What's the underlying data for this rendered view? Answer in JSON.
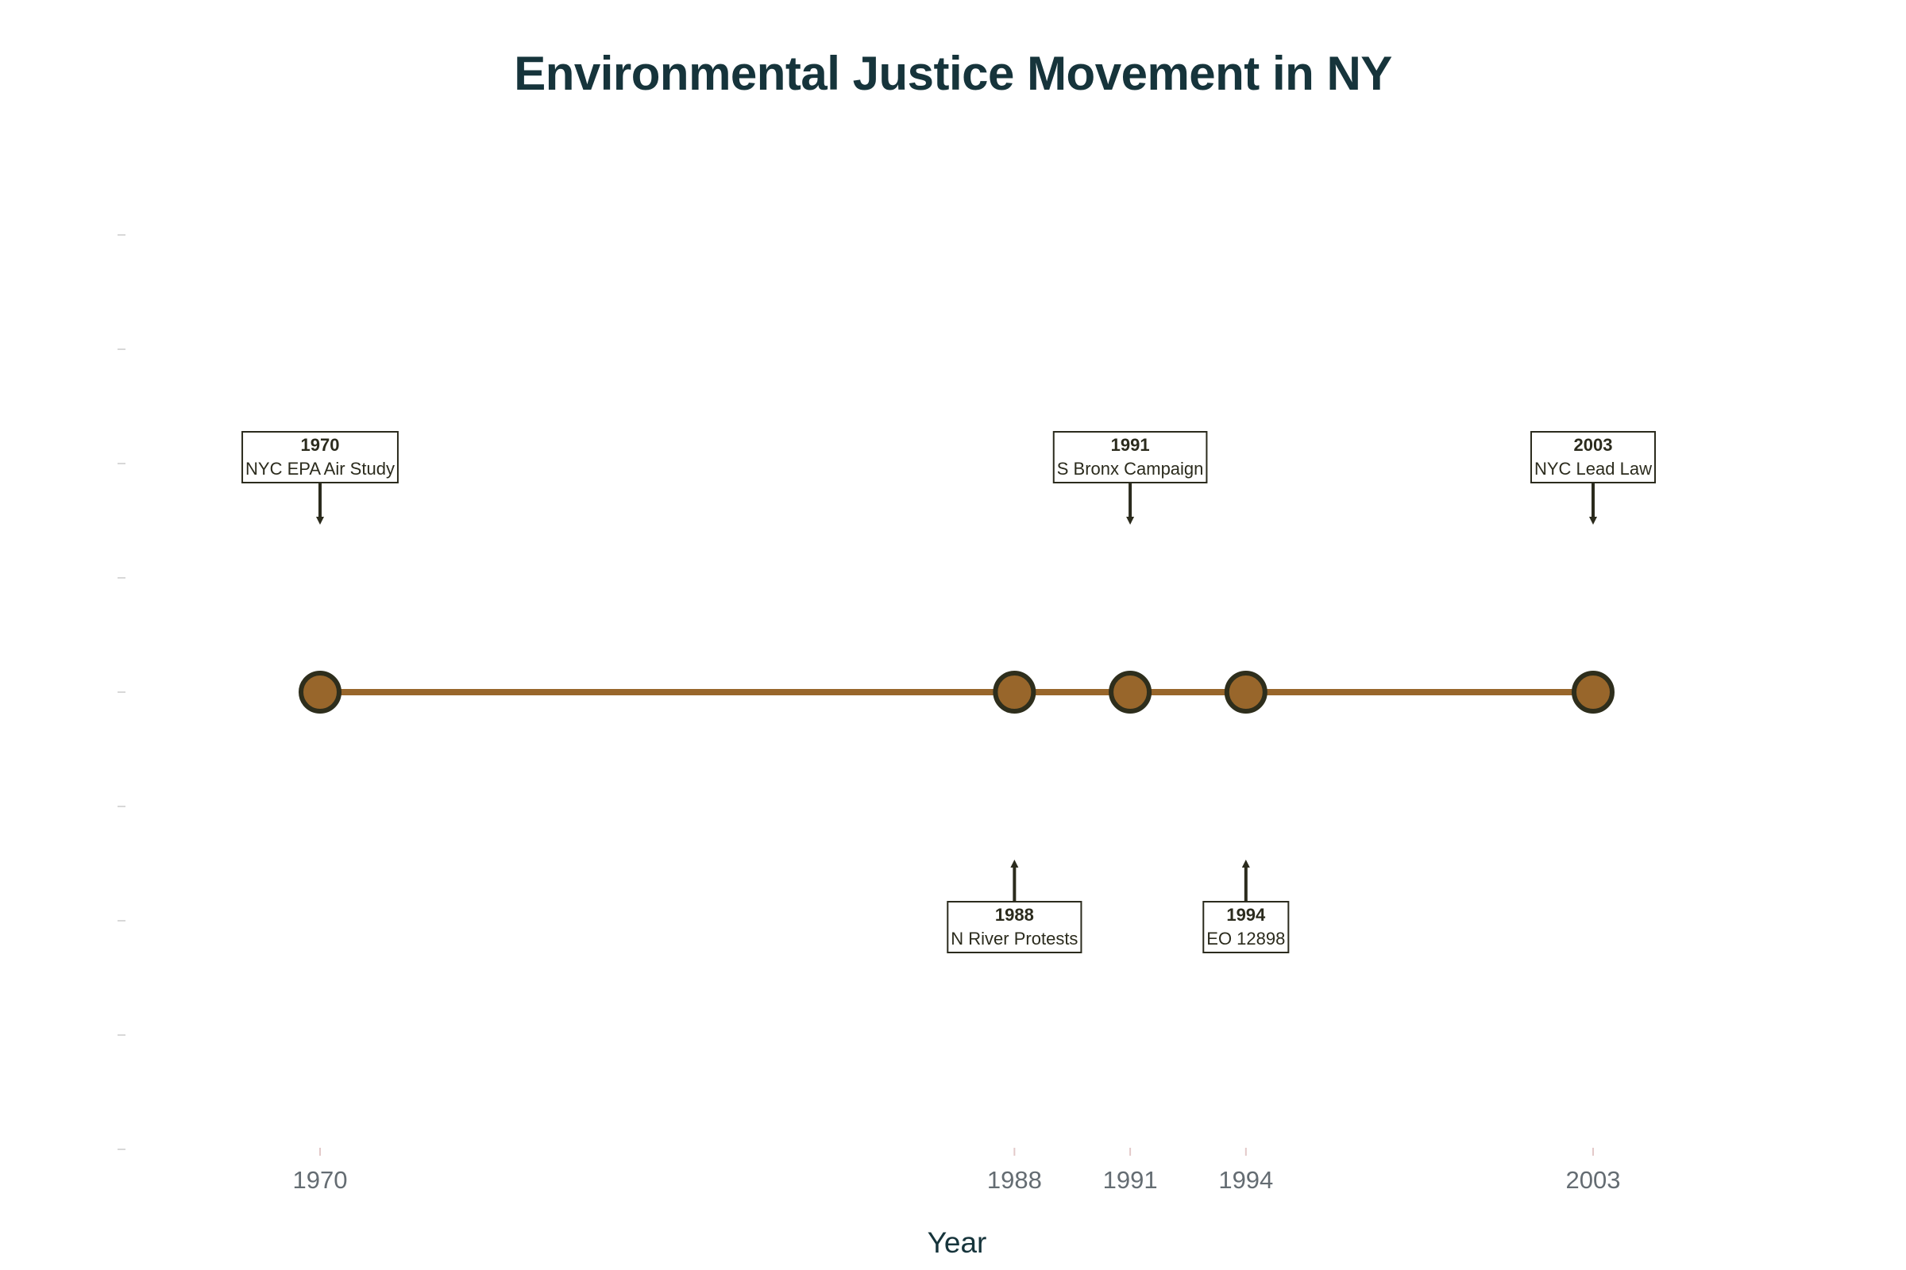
{
  "chart_data": {
    "type": "line",
    "title": "Environmental Justice Movement in NY",
    "xlabel": "Year",
    "ylabel": "",
    "x_ticks": [
      "1970",
      "1988",
      "1991",
      "1994",
      "2003"
    ],
    "xlim": [
      1965,
      2011
    ],
    "ylim": [
      -2,
      2
    ],
    "grid": false,
    "legend": "none",
    "series": [
      {
        "x": [
          1970,
          1988,
          1991,
          1994,
          2003
        ],
        "y": [
          0,
          0,
          0,
          0,
          0
        ]
      }
    ],
    "annotations": [
      {
        "year": "1970",
        "text": "NYC EPA Air Study",
        "side": "above"
      },
      {
        "year": "1988",
        "text": "N River Protests",
        "side": "below"
      },
      {
        "year": "1991",
        "text": "S Bronx Campaign",
        "side": "above"
      },
      {
        "year": "1994",
        "text": "EO 12898",
        "side": "below"
      },
      {
        "year": "2003",
        "text": "NYC Lead Law",
        "side": "above"
      }
    ],
    "colors": {
      "line": "#98662b",
      "marker_fill": "#98662b",
      "marker_edge": "#2e2e1c",
      "annotation_border": "#2b2b1d",
      "title": "#16343b",
      "tick": "#646c72"
    }
  }
}
